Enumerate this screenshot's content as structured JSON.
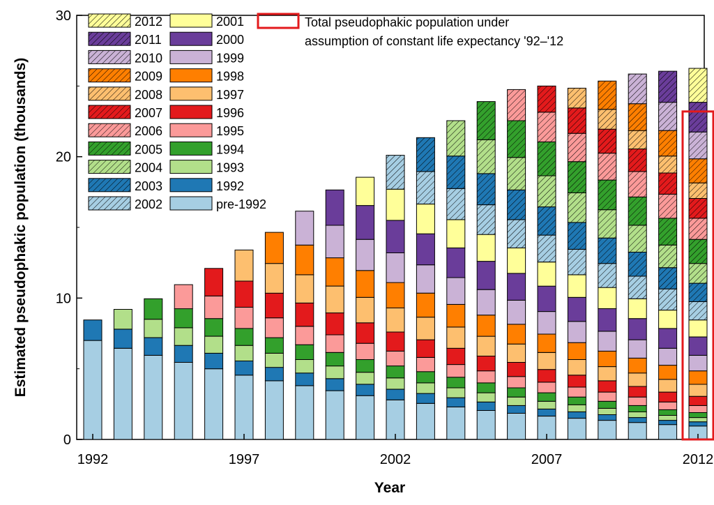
{
  "chart_data": {
    "type": "bar",
    "stacked": true,
    "xlabel": "Year",
    "ylabel": "Estimated pseudophakic population (thousands)",
    "ylim": [
      0,
      30
    ],
    "yticks": [
      "0",
      "10",
      "20",
      "30"
    ],
    "xticks": [
      "1992",
      "1997",
      "2002",
      "2007",
      "2012"
    ],
    "categories": [
      "1992",
      "1993",
      "1994",
      "1995",
      "1996",
      "1997",
      "1998",
      "1999",
      "2000",
      "2001",
      "2002",
      "2003",
      "2004",
      "2005",
      "2006",
      "2007",
      "2008",
      "2009",
      "2010",
      "2011",
      "2012"
    ],
    "cohorts": [
      {
        "name": "pre-1992",
        "color": "#a6cee3",
        "hatched": false,
        "values": [
          7.0,
          6.45,
          5.95,
          5.45,
          5.0,
          4.55,
          4.15,
          3.8,
          3.45,
          3.1,
          2.8,
          2.55,
          2.3,
          2.05,
          1.85,
          1.65,
          1.5,
          1.35,
          1.2,
          1.05,
          0.95
        ]
      },
      {
        "name": "1992",
        "color": "#1f78b4",
        "hatched": false,
        "values": [
          1.45,
          1.35,
          1.25,
          1.2,
          1.1,
          1.0,
          0.95,
          0.9,
          0.85,
          0.8,
          0.75,
          0.7,
          0.65,
          0.6,
          0.55,
          0.5,
          0.45,
          0.4,
          0.35,
          0.3,
          0.3
        ]
      },
      {
        "name": "1993",
        "color": "#b2df8a",
        "hatched": false,
        "values": [
          0,
          1.4,
          1.3,
          1.25,
          1.2,
          1.1,
          1.0,
          0.95,
          0.9,
          0.85,
          0.8,
          0.75,
          0.7,
          0.65,
          0.6,
          0.55,
          0.5,
          0.45,
          0.4,
          0.35,
          0.3
        ]
      },
      {
        "name": "1994",
        "color": "#33a02c",
        "hatched": false,
        "values": [
          0,
          0,
          1.45,
          1.35,
          1.25,
          1.2,
          1.1,
          1.05,
          0.95,
          0.9,
          0.85,
          0.8,
          0.75,
          0.7,
          0.65,
          0.6,
          0.55,
          0.5,
          0.45,
          0.4,
          0.35
        ]
      },
      {
        "name": "1995",
        "color": "#fb9a99",
        "hatched": false,
        "values": [
          0,
          0,
          0,
          1.7,
          1.6,
          1.5,
          1.4,
          1.3,
          1.25,
          1.15,
          1.05,
          1.0,
          0.9,
          0.85,
          0.8,
          0.75,
          0.7,
          0.65,
          0.6,
          0.55,
          0.5
        ]
      },
      {
        "name": "1996",
        "color": "#e31a1c",
        "hatched": false,
        "values": [
          0,
          0,
          0,
          0,
          1.95,
          1.85,
          1.75,
          1.65,
          1.55,
          1.45,
          1.35,
          1.25,
          1.15,
          1.05,
          1.0,
          0.9,
          0.85,
          0.8,
          0.75,
          0.7,
          0.65
        ]
      },
      {
        "name": "1997",
        "color": "#fdbf6f",
        "hatched": false,
        "values": [
          0,
          0,
          0,
          0,
          0,
          2.2,
          2.1,
          2.0,
          1.9,
          1.8,
          1.7,
          1.6,
          1.5,
          1.4,
          1.3,
          1.2,
          1.1,
          1.0,
          0.95,
          0.9,
          0.85
        ]
      },
      {
        "name": "1998",
        "color": "#ff7f00",
        "hatched": false,
        "values": [
          0,
          0,
          0,
          0,
          0,
          0,
          2.2,
          2.1,
          2.0,
          1.9,
          1.8,
          1.7,
          1.6,
          1.5,
          1.4,
          1.3,
          1.2,
          1.1,
          1.05,
          1.0,
          0.95
        ]
      },
      {
        "name": "1999",
        "color": "#cab2d6",
        "hatched": false,
        "values": [
          0,
          0,
          0,
          0,
          0,
          0,
          0,
          2.4,
          2.3,
          2.2,
          2.1,
          2.0,
          1.9,
          1.8,
          1.7,
          1.6,
          1.5,
          1.4,
          1.3,
          1.2,
          1.1
        ]
      },
      {
        "name": "2000",
        "color": "#6a3d9a",
        "hatched": false,
        "values": [
          0,
          0,
          0,
          0,
          0,
          0,
          0,
          0,
          2.5,
          2.4,
          2.3,
          2.2,
          2.1,
          2.0,
          1.9,
          1.8,
          1.7,
          1.6,
          1.5,
          1.4,
          1.3
        ]
      },
      {
        "name": "2001",
        "color": "#ffff99",
        "hatched": false,
        "values": [
          0,
          0,
          0,
          0,
          0,
          0,
          0,
          0,
          0,
          2.0,
          2.2,
          2.1,
          2.0,
          1.9,
          1.8,
          1.7,
          1.6,
          1.5,
          1.4,
          1.3,
          1.2
        ]
      },
      {
        "name": "2002",
        "color": "#a6cee3",
        "hatched": true,
        "values": [
          0,
          0,
          0,
          0,
          0,
          0,
          0,
          0,
          0,
          0,
          2.4,
          2.3,
          2.2,
          2.1,
          2.0,
          1.9,
          1.8,
          1.7,
          1.6,
          1.5,
          1.3
        ]
      },
      {
        "name": "2003",
        "color": "#1f78b4",
        "hatched": true,
        "values": [
          0,
          0,
          0,
          0,
          0,
          0,
          0,
          0,
          0,
          0,
          0,
          2.4,
          2.3,
          2.2,
          2.1,
          2.0,
          1.9,
          1.8,
          1.7,
          1.5,
          1.3
        ]
      },
      {
        "name": "2004",
        "color": "#b2df8a",
        "hatched": true,
        "values": [
          0,
          0,
          0,
          0,
          0,
          0,
          0,
          0,
          0,
          0,
          0,
          0,
          2.5,
          2.4,
          2.3,
          2.2,
          2.1,
          2.0,
          1.9,
          1.6,
          1.4
        ]
      },
      {
        "name": "2005",
        "color": "#33a02c",
        "hatched": true,
        "values": [
          0,
          0,
          0,
          0,
          0,
          0,
          0,
          0,
          0,
          0,
          0,
          0,
          0,
          2.7,
          2.6,
          2.4,
          2.2,
          2.1,
          2.0,
          1.9,
          1.7
        ]
      },
      {
        "name": "2006",
        "color": "#fb9a99",
        "hatched": true,
        "values": [
          0,
          0,
          0,
          0,
          0,
          0,
          0,
          0,
          0,
          0,
          0,
          0,
          0,
          0,
          2.2,
          2.1,
          2.0,
          1.9,
          1.8,
          1.7,
          1.5
        ]
      },
      {
        "name": "2007",
        "color": "#e31a1c",
        "hatched": true,
        "values": [
          0,
          0,
          0,
          0,
          0,
          0,
          0,
          0,
          0,
          0,
          0,
          0,
          0,
          0,
          0,
          1.85,
          1.8,
          1.7,
          1.6,
          1.5,
          1.4
        ]
      },
      {
        "name": "2008",
        "color": "#fdbf6f",
        "hatched": true,
        "values": [
          0,
          0,
          0,
          0,
          0,
          0,
          0,
          0,
          0,
          0,
          0,
          0,
          0,
          0,
          0,
          0,
          1.4,
          1.4,
          1.3,
          1.2,
          1.1
        ]
      },
      {
        "name": "2009",
        "color": "#ff7f00",
        "hatched": true,
        "values": [
          0,
          0,
          0,
          0,
          0,
          0,
          0,
          0,
          0,
          0,
          0,
          0,
          0,
          0,
          0,
          0,
          0,
          2.0,
          1.9,
          1.8,
          1.7
        ]
      },
      {
        "name": "2010",
        "color": "#cab2d6",
        "hatched": true,
        "values": [
          0,
          0,
          0,
          0,
          0,
          0,
          0,
          0,
          0,
          0,
          0,
          0,
          0,
          0,
          0,
          0,
          0,
          0,
          2.1,
          2.0,
          1.9
        ]
      },
      {
        "name": "2011",
        "color": "#6a3d9a",
        "hatched": true,
        "values": [
          0,
          0,
          0,
          0,
          0,
          0,
          0,
          0,
          0,
          0,
          0,
          0,
          0,
          0,
          0,
          0,
          0,
          0,
          0,
          2.2,
          2.1
        ]
      },
      {
        "name": "2012",
        "color": "#ffff99",
        "hatched": true,
        "values": [
          0,
          0,
          0,
          0,
          0,
          0,
          0,
          0,
          0,
          0,
          0,
          0,
          0,
          0,
          0,
          0,
          0,
          0,
          0,
          0,
          2.4
        ]
      }
    ],
    "highlight": {
      "category": "2012",
      "total": 23.2,
      "color": "#e31a1c",
      "label_line1": "Total pseudophakic population under",
      "label_line2": "assumption of constant life expectancy '92–'12"
    },
    "legend_left": [
      "2012",
      "2011",
      "2010",
      "2009",
      "2008",
      "2007",
      "2006",
      "2005",
      "2004",
      "2003",
      "2002"
    ],
    "legend_right": [
      "2001",
      "2000",
      "1999",
      "1998",
      "1997",
      "1996",
      "1995",
      "1994",
      "1993",
      "1992",
      "pre-1992"
    ],
    "legend_position": "top-left"
  }
}
